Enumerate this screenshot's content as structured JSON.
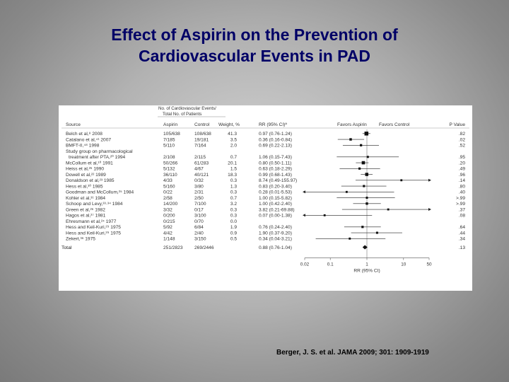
{
  "title": {
    "line1": "Effect of Aspirin on the Prevention of",
    "line2": "Cardiovascular Events in PAD"
  },
  "citation": "Berger, J. S. et al. JAMA 2009; 301: 1909-1919",
  "chart_data": {
    "type": "forest",
    "header_group": {
      "line1": "No. of Cardiovascular Events/",
      "line2": "Total No. of Patients"
    },
    "columns": {
      "source": "Source",
      "aspirin": "Aspirin",
      "control": "Control",
      "weight": "Weight, %",
      "rr": "RR (95% CI)ª",
      "favors_aspirin": "Favors Aspirin",
      "favors_control": "Favors Control",
      "p": "P Value"
    },
    "xlabel": "RR (95% CI)",
    "x_scale": "log",
    "x_ticks": [
      {
        "value": 0.02,
        "label": "0.02"
      },
      {
        "value": 0.1,
        "label": "0.1"
      },
      {
        "value": 1,
        "label": "1"
      },
      {
        "value": 10,
        "label": "10"
      },
      {
        "value": 50,
        "label": "50"
      }
    ],
    "xlim": [
      0.02,
      50
    ],
    "rows": [
      {
        "source": "Belch et al,⁸ 2008",
        "aspirin": "105/638",
        "control": "108/638",
        "weight": "41.3",
        "rr_text": "0.97 (0.76-1.24)",
        "p": ".82",
        "rr": 0.97,
        "lo": 0.76,
        "hi": 1.24
      },
      {
        "source": "Catalano et al,⁴¹ 2007",
        "aspirin": "7/185",
        "control": "19/181",
        "weight": "3.5",
        "rr_text": "0.36 (0.16-0.84)",
        "p": ".02",
        "rr": 0.36,
        "lo": 0.16,
        "hi": 0.84
      },
      {
        "source": "BMFT-II,⁴⁸ 1998",
        "aspirin": "5/110",
        "control": "7/164",
        "weight": "2.0",
        "rr_text": "0.69 (0.22-2.13)",
        "p": ".52",
        "rr": 0.69,
        "lo": 0.22,
        "hi": 2.13
      },
      {
        "source": "Study group on pharmacological",
        "source2": "treatment after PTA,²⁰ 1994",
        "aspirin": "2/108",
        "control": "2/115",
        "weight": "0.7",
        "rr_text": "1.06 (0.15-7.43)",
        "p": ".95",
        "rr": 1.06,
        "lo": 0.15,
        "hi": 7.43
      },
      {
        "source": "McCollum et al,¹⁰ 1991",
        "aspirin": "50/266",
        "control": "61/283",
        "weight": "20.1",
        "rr_text": "0.80 (0.50-1.11)",
        "p": ".20",
        "rr": 0.8,
        "lo": 0.5,
        "hi": 1.11
      },
      {
        "source": "Heiss et al,²⁶ 1990",
        "aspirin": "5/132",
        "control": "4/67",
        "weight": "1.5",
        "rr_text": "0.63 (0.18-2.29)",
        "p": ".49",
        "rr": 0.63,
        "lo": 0.18,
        "hi": 2.29
      },
      {
        "source": "Dowell et al,²² 1989",
        "aspirin": "36/110",
        "control": "40/121",
        "weight": "18.3",
        "rr_text": "0.99 (0.68-1.43)",
        "p": ".96",
        "rr": 0.99,
        "lo": 0.68,
        "hi": 1.43
      },
      {
        "source": "Donaldson et al,²³ 1985",
        "aspirin": "4/33",
        "control": "0/32",
        "weight": "0.3",
        "rr_text": "8.74 (0.49-155.97)",
        "p": ".14",
        "rr": 8.74,
        "lo": 0.49,
        "hi": 155.97
      },
      {
        "source": "Hess et al,³⁰ 1985",
        "aspirin": "5/160",
        "control": "3/80",
        "weight": "1.3",
        "rr_text": "0.83 (0.20-3.40)",
        "p": ".80",
        "rr": 0.83,
        "lo": 0.2,
        "hi": 3.4
      },
      {
        "source": "Goodman and McCollum,²⁵ 1984",
        "aspirin": "0/22",
        "control": "2/31",
        "weight": "0.3",
        "rr_text": "0.28 (0.01-5.53)",
        "p": ".40",
        "rr": 0.28,
        "lo": 0.01,
        "hi": 5.53
      },
      {
        "source": "Kohler et al,³¹ 1984",
        "aspirin": "2/58",
        "control": "2/50",
        "weight": "0.7",
        "rr_text": "1.00 (0.15-5.82)",
        "p": ">.99",
        "rr": 1.0,
        "lo": 0.15,
        "hi": 5.82
      },
      {
        "source": "Schoop and Levy,³³·³⁴ 1984",
        "aspirin": "14/200",
        "control": "7/100",
        "weight": "3.2",
        "rr_text": "1.00 (0.42-2.40)",
        "p": ">.99",
        "rr": 1.0,
        "lo": 0.42,
        "hi": 2.4
      },
      {
        "source": "Green et al,²⁶ 1982",
        "aspirin": "3/32",
        "control": "0/17",
        "weight": "0.3",
        "rr_text": "3.82 (0.21-69.88)",
        "p": ".37",
        "rr": 3.82,
        "lo": 0.21,
        "hi": 69.88
      },
      {
        "source": "Hagos et al,²⁷ 1981",
        "aspirin": "0/200",
        "control": "3/100",
        "weight": "0.3",
        "rr_text": "0.07 (0.00-1.38)",
        "p": ".08",
        "rr": 0.07,
        "lo": 0.0,
        "hi": 1.38
      },
      {
        "source": "Ehresmann et al,²⁴ 1977",
        "aspirin": "0/215",
        "control": "0/70",
        "weight": "0.0",
        "rr_text": "",
        "p": "",
        "rr": null,
        "lo": null,
        "hi": null
      },
      {
        "source": "Hess and Keil-Kuri,²⁹ 1975",
        "aspirin": "5/92",
        "control": "6/84",
        "weight": "1.9",
        "rr_text": "0.76 (0.24-2.40)",
        "p": ".64",
        "rr": 0.76,
        "lo": 0.24,
        "hi": 2.4
      },
      {
        "source": "Hess and Keil-Kuri,²⁹ 1975",
        "aspirin": "4/42",
        "control": "2/40",
        "weight": "0.9",
        "rr_text": "1.90 (0.37-9.20)",
        "p": ".44",
        "rr": 1.9,
        "lo": 0.37,
        "hi": 9.2
      },
      {
        "source": "Zekert,³⁶ 1975",
        "aspirin": "1/148",
        "control": "3/150",
        "weight": "0.5",
        "rr_text": "0.34 (0.04-3.21)",
        "p": ".34",
        "rr": 0.34,
        "lo": 0.04,
        "hi": 3.21
      }
    ],
    "total": {
      "source": "Total",
      "aspirin": "251/2823",
      "control": "269/2446",
      "weight": "",
      "rr_text": "0.88 (0.76-1.04)",
      "p": ".13",
      "rr": 0.88,
      "lo": 0.76,
      "hi": 1.04
    }
  }
}
